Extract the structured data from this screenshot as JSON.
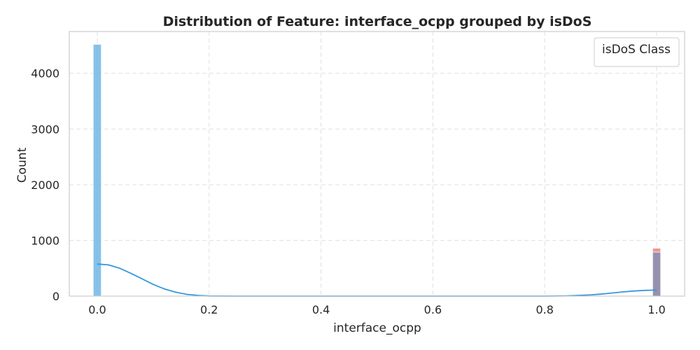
{
  "chart_data": {
    "type": "bar",
    "title": "Distribution of Feature: interface_ocpp grouped by isDoS",
    "xlabel": "interface_ocpp",
    "ylabel": "Count",
    "xlim": [
      -0.05,
      1.05
    ],
    "ylim": [
      0,
      4750
    ],
    "xticks": [
      0.0,
      0.2,
      0.4,
      0.6,
      0.8,
      1.0
    ],
    "xtick_labels": [
      "0.0",
      "0.2",
      "0.4",
      "0.6",
      "0.8",
      "1.0"
    ],
    "yticks": [
      0,
      1000,
      2000,
      3000,
      4000
    ],
    "ytick_labels": [
      "0",
      "1000",
      "2000",
      "3000",
      "4000"
    ],
    "grid": true,
    "bin_width": 0.02,
    "bars": [
      {
        "x": 0.0,
        "value": 4520,
        "color": "#5dade2"
      },
      {
        "x": 1.0,
        "value": 860,
        "color": "#e6776e"
      },
      {
        "x": 1.0,
        "value": 790,
        "color": "#7b8fb8"
      }
    ],
    "kde": {
      "color": "#3498db",
      "x": [
        0.0,
        0.02,
        0.04,
        0.06,
        0.08,
        0.1,
        0.12,
        0.14,
        0.16,
        0.18,
        0.2,
        0.25,
        0.3,
        0.5,
        0.7,
        0.8,
        0.84,
        0.88,
        0.9,
        0.92,
        0.94,
        0.96,
        0.98,
        1.0
      ],
      "y": [
        575,
        560,
        500,
        410,
        310,
        210,
        130,
        70,
        32,
        12,
        3,
        0,
        0,
        0,
        0,
        0,
        5,
        20,
        35,
        55,
        75,
        92,
        103,
        108
      ]
    },
    "legend": {
      "title": "isDoS Class",
      "position": "top-right",
      "entries": []
    }
  }
}
